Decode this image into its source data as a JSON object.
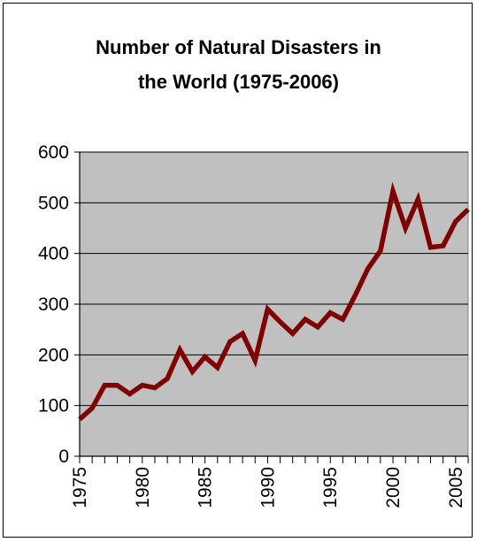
{
  "chart_data": {
    "type": "line",
    "title_lines": [
      "Number of Natural Disasters in",
      "the World (1975-2006)"
    ],
    "xlabel": "",
    "ylabel": "",
    "x": [
      1975,
      1976,
      1977,
      1978,
      1979,
      1980,
      1981,
      1982,
      1983,
      1984,
      1985,
      1986,
      1987,
      1988,
      1989,
      1990,
      1991,
      1992,
      1993,
      1994,
      1995,
      1996,
      1997,
      1998,
      1999,
      2000,
      2001,
      2002,
      2003,
      2004,
      2005,
      2006
    ],
    "series": [
      {
        "values": [
          73,
          95,
          140,
          140,
          123,
          140,
          135,
          153,
          210,
          167,
          196,
          175,
          226,
          242,
          189,
          290,
          265,
          242,
          270,
          255,
          283,
          270,
          318,
          370,
          405,
          523,
          450,
          507,
          412,
          415,
          463,
          487
        ],
        "color": "#7f0000"
      }
    ],
    "xlim": [
      1975,
      2006
    ],
    "ylim": [
      0,
      600
    ],
    "y_ticks": [
      0,
      100,
      200,
      300,
      400,
      500,
      600
    ],
    "x_tick_labels": [
      1975,
      1980,
      1985,
      1990,
      1995,
      2000,
      2005
    ],
    "grid": "horizontal",
    "plot_background": "#c0c0c0",
    "legend": "none"
  }
}
